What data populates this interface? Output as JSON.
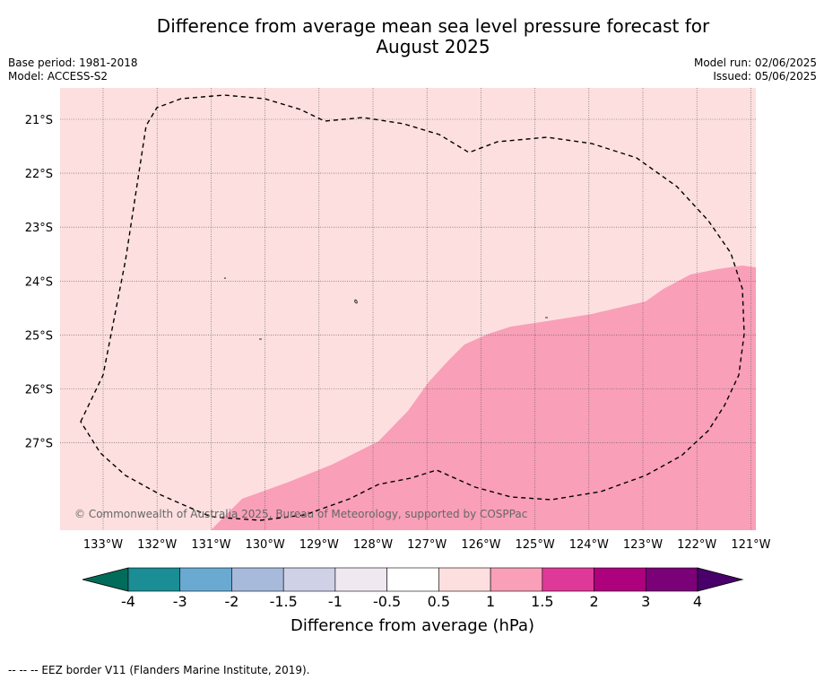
{
  "title": {
    "line1": "Difference from average mean sea level pressure forecast for",
    "line2": "August 2025"
  },
  "meta": {
    "base_period": "Base period: 1981-2018",
    "model": "Model: ACCESS-S2",
    "model_run": "Model run: 02/06/2025",
    "issued": "Issued: 05/06/2025"
  },
  "map": {
    "lat_labels": [
      "21°S",
      "22°S",
      "23°S",
      "24°S",
      "25°S",
      "26°S",
      "27°S"
    ],
    "lon_labels": [
      "133°W",
      "132°W",
      "131°W",
      "130°W",
      "129°W",
      "128°W",
      "127°W",
      "126°W",
      "125°W",
      "124°W",
      "123°W",
      "122°W",
      "121°W"
    ],
    "copyright": "© Commonwealth of Australia 2025, Bureau of Meteorology, supported by COSPPac",
    "background_category": "0.5 to 1",
    "shaded_category": "1 to 1.5",
    "colors": {
      "bg": "#fddfdf",
      "shaded": "#f99fb8"
    }
  },
  "colorbar": {
    "ticks": [
      "-4",
      "-3",
      "-2",
      "-1.5",
      "-1",
      "-0.5",
      "0.5",
      "1",
      "1.5",
      "2",
      "3",
      "4"
    ],
    "colors": [
      "#1a8d95",
      "#6aaad2",
      "#a7badb",
      "#cfd1e6",
      "#f0e8f1",
      "#ffffff",
      "#fddfdf",
      "#f99fb8",
      "#de3898",
      "#ad017e",
      "#7a0177"
    ],
    "under_color": "#016c59",
    "over_color": "#49006a",
    "label": "Difference from average (hPa)"
  },
  "footnote": "--  --  -- EEZ border V11 (Flanders Marine Institute, 2019)."
}
